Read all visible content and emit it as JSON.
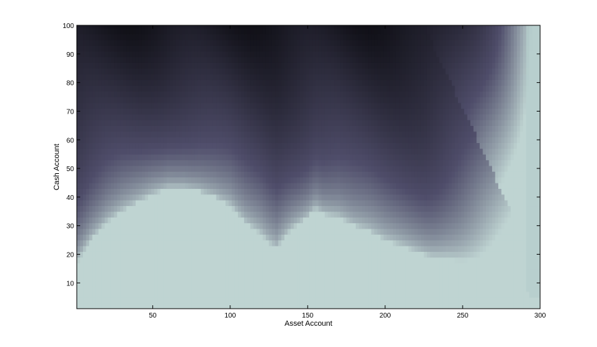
{
  "chart_data": {
    "type": "heatmap",
    "title": "",
    "xlabel": "Asset Account",
    "ylabel": "Cash Account",
    "xlim": [
      1,
      300
    ],
    "ylim": [
      1,
      100
    ],
    "xticks": [
      50,
      100,
      150,
      200,
      250,
      300
    ],
    "yticks": [
      10,
      20,
      30,
      40,
      50,
      60,
      70,
      80,
      90,
      100
    ],
    "colormap": "bone",
    "grid": false,
    "legend": "none",
    "plateau_boundary": {
      "description": "Cash level below which the surface is flat (light teal region)",
      "x": [
        1,
        10,
        20,
        30,
        40,
        50,
        60,
        70,
        80,
        90,
        100,
        110,
        120,
        125,
        130,
        135,
        140,
        150,
        155,
        160,
        170,
        180,
        190,
        200,
        210,
        220,
        230,
        240,
        250,
        260,
        270,
        280,
        290,
        300
      ],
      "y": [
        17,
        25,
        31,
        35,
        38,
        41,
        43,
        43,
        42,
        40,
        37,
        31,
        27,
        24,
        22,
        26,
        29,
        33,
        36,
        34,
        33,
        30,
        28,
        25,
        23,
        21,
        19,
        18,
        16,
        14,
        12,
        10,
        7,
        4
      ]
    },
    "colors": {
      "plateau": "#bfd4d2",
      "dark": "#0b0b10",
      "mid": "#4f4d6a",
      "edge": "#b3cccb"
    }
  }
}
